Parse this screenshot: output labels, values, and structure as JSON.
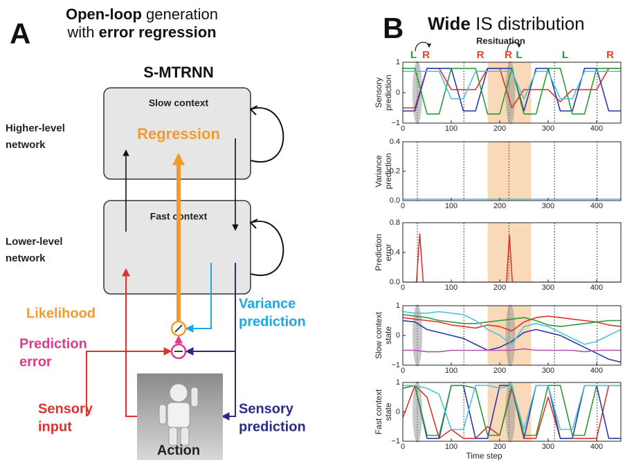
{
  "panel_a": {
    "letter": "A",
    "title": [
      [
        {
          "text": "Open-loop",
          "bold": true
        },
        {
          "text": " generation",
          "bold": false
        }
      ],
      [
        {
          "text": "with ",
          "bold": false
        },
        {
          "text": "error regression",
          "bold": true
        }
      ]
    ],
    "model": "S-MTRNN",
    "slow_box": {
      "title": "Slow context",
      "label": "Regression"
    },
    "fast_box": {
      "title": "Fast context"
    },
    "higher_level": [
      "Higher-level",
      "network"
    ],
    "lower_level": [
      "Lower-level",
      "network"
    ],
    "likelihood": "Likelihood",
    "prediction_error": [
      "Prediction",
      "error"
    ],
    "variance_prediction": [
      "Variance",
      "prediction"
    ],
    "sensory_input": [
      "Sensory",
      "input"
    ],
    "sensory_prediction": [
      "Sensory",
      "prediction"
    ],
    "action": "Action"
  },
  "panel_b": {
    "letter": "B",
    "title": [
      {
        "text": "Wide",
        "bold": true
      },
      {
        "text": " IS distribution",
        "bold": false
      }
    ],
    "annotation": "Resituation",
    "top_labels": [
      {
        "text": "L",
        "x": 22,
        "color": "#1f9a3a"
      },
      {
        "text": "R",
        "x": 48,
        "color": "#e0402a"
      },
      {
        "text": "R",
        "x": 160,
        "color": "#e0402a"
      },
      {
        "text": "R",
        "x": 218,
        "color": "#e0402a"
      },
      {
        "text": "L",
        "x": 240,
        "color": "#1f9a3a"
      },
      {
        "text": "L",
        "x": 335,
        "color": "#1f9a3a"
      },
      {
        "text": "R",
        "x": 428,
        "color": "#e0402a"
      }
    ],
    "events": [
      30,
      126,
      219,
      313,
      401
    ],
    "shade": [
      175,
      265
    ],
    "highlights": [
      30,
      222
    ]
  },
  "chart_data": [
    {
      "type": "line",
      "ylabel": [
        "Sensory",
        "prediction"
      ],
      "xlim": [
        0,
        450
      ],
      "xticks": [
        0,
        100,
        200,
        300,
        400
      ],
      "ylim": [
        -1,
        1
      ],
      "yticks": [
        {
          "value": -1,
          "label": "−1"
        },
        0,
        1
      ],
      "x": [
        0,
        25,
        50,
        75,
        100,
        125,
        150,
        175,
        200,
        225,
        250,
        275,
        300,
        325,
        350,
        375,
        400,
        425,
        450
      ],
      "series": [
        {
          "color": "#e0302a",
          "values": [
            -0.5,
            -0.5,
            0.8,
            0.8,
            0.1,
            0.1,
            0.1,
            0.8,
            0.8,
            -0.5,
            0.1,
            0.1,
            0.1,
            -0.3,
            0.1,
            0.1,
            0.1,
            0.8,
            0.8
          ]
        },
        {
          "color": "#2a3aa8",
          "values": [
            -0.6,
            -0.6,
            0.8,
            0.8,
            0.8,
            -0.6,
            -0.6,
            0.8,
            0.8,
            0.8,
            -0.6,
            0.8,
            0.8,
            -0.6,
            -0.6,
            0.8,
            0.8,
            -0.6,
            -0.6
          ]
        },
        {
          "color": "#2a9a3a",
          "values": [
            0.8,
            0.8,
            -0.7,
            -0.7,
            0.8,
            0.8,
            0.8,
            -0.7,
            -0.7,
            0.8,
            -0.7,
            -0.7,
            0.8,
            0.8,
            -0.7,
            -0.7,
            0.8,
            0.8,
            0.8
          ]
        },
        {
          "color": "#4fc3dc",
          "values": [
            0.7,
            0.7,
            0.7,
            0.7,
            -0.2,
            -0.2,
            0.7,
            0.7,
            0.7,
            0.7,
            -0.2,
            0.7,
            0.7,
            -0.2,
            -0.2,
            0.7,
            0.7,
            0.7,
            0.7
          ]
        }
      ]
    },
    {
      "type": "line",
      "ylabel": [
        "Variance",
        "prediction"
      ],
      "xlim": [
        0,
        450
      ],
      "xticks": [
        0,
        100,
        200,
        300,
        400
      ],
      "ylim": [
        0,
        0.4
      ],
      "yticks": [
        {
          "value": 0,
          "label": "0.0"
        },
        0.2,
        0.4
      ],
      "x": [
        0,
        450
      ],
      "series": [
        {
          "color": "#4fc3dc",
          "values": [
            0.01,
            0.01
          ]
        }
      ]
    },
    {
      "type": "line",
      "ylabel": [
        "Prediction",
        "error"
      ],
      "xlim": [
        0,
        450
      ],
      "xticks": [
        0,
        100,
        200,
        300,
        400
      ],
      "ylim": [
        0,
        0.8
      ],
      "yticks": [
        {
          "value": 0,
          "label": "0.0"
        },
        0.4,
        0.8
      ],
      "x": [
        0,
        28,
        35,
        42,
        214,
        220,
        226,
        450
      ],
      "series": [
        {
          "color": "#e0302a",
          "values": [
            0,
            0,
            0.65,
            0,
            0,
            0.63,
            0,
            0
          ]
        }
      ]
    },
    {
      "type": "line",
      "ylabel": [
        "Slow context",
        "state"
      ],
      "xlim": [
        0,
        450
      ],
      "xticks": [
        0,
        100,
        200,
        300,
        400
      ],
      "ylim": [
        -1,
        1
      ],
      "yticks": [
        {
          "value": -1,
          "label": "−1"
        },
        0,
        1
      ],
      "x": [
        0,
        25,
        50,
        75,
        100,
        125,
        150,
        175,
        200,
        225,
        250,
        275,
        300,
        325,
        350,
        375,
        400,
        425,
        450
      ],
      "series": [
        {
          "color": "#e0302a",
          "values": [
            0.6,
            0.55,
            0.5,
            0.45,
            0.35,
            0.3,
            0.25,
            0.35,
            0.3,
            0.15,
            0.45,
            0.6,
            0.65,
            0.6,
            0.55,
            0.5,
            0.45,
            0.35,
            0.3
          ]
        },
        {
          "color": "#2a9a3a",
          "values": [
            0.7,
            0.65,
            0.6,
            0.5,
            0.45,
            0.4,
            0.4,
            0.45,
            0.5,
            0.55,
            0.6,
            0.5,
            0.35,
            0.3,
            0.35,
            0.4,
            0.45,
            0.5,
            0.5
          ]
        },
        {
          "color": "#2a3aa8",
          "values": [
            0.5,
            0.45,
            0.2,
            0.1,
            0,
            -0.1,
            -0.3,
            -0.5,
            -0.4,
            -0.2,
            0.1,
            0.2,
            0.1,
            0,
            -0.2,
            -0.4,
            -0.6,
            -0.8,
            -0.9
          ]
        },
        {
          "color": "#4fc3dc",
          "values": [
            0.8,
            0.75,
            0.75,
            0.8,
            0.75,
            0.7,
            0.5,
            0.2,
            0,
            -0.3,
            0.3,
            0.4,
            0.3,
            0.1,
            -0.1,
            -0.3,
            -0.2,
            0,
            0.2
          ]
        },
        {
          "color": "#b050b0",
          "values": [
            -0.5,
            -0.5,
            -0.55,
            -0.55,
            -0.5,
            -0.5,
            -0.5,
            -0.5,
            -0.5,
            -0.5,
            -0.45,
            -0.5,
            -0.5,
            -0.5,
            -0.5,
            -0.55,
            -0.5,
            -0.5,
            -0.5
          ]
        }
      ]
    },
    {
      "type": "line",
      "ylabel": [
        "Fast context",
        "state"
      ],
      "xlim": [
        0,
        450
      ],
      "xticks": [
        0,
        100,
        200,
        300,
        400
      ],
      "ylim": [
        -1,
        1
      ],
      "yticks": [
        {
          "value": -1,
          "label": "−1"
        },
        0,
        1
      ],
      "xlabel": "Time step",
      "x": [
        0,
        25,
        50,
        75,
        100,
        125,
        150,
        175,
        200,
        225,
        250,
        275,
        300,
        325,
        350,
        375,
        400,
        425,
        450
      ],
      "series": [
        {
          "color": "#e0302a",
          "values": [
            -0.2,
            0.9,
            0.5,
            -0.9,
            -0.6,
            -0.9,
            -0.9,
            -0.5,
            -0.8,
            0.8,
            -0.9,
            -0.9,
            0.5,
            -0.9,
            -0.9,
            -0.9,
            -0.9,
            0.9,
            0.9
          ]
        },
        {
          "color": "#2a3aa8",
          "values": [
            0.9,
            0.9,
            -0.9,
            -0.9,
            0.9,
            0.9,
            -0.9,
            -0.9,
            0.9,
            0.9,
            -0.9,
            0.9,
            0.9,
            -0.9,
            -0.9,
            0.9,
            0.9,
            -0.9,
            -0.9
          ]
        },
        {
          "color": "#2a9a3a",
          "values": [
            0.8,
            0.9,
            -0.8,
            -0.8,
            0.9,
            0.9,
            0.8,
            -0.8,
            -0.8,
            0.9,
            -0.8,
            -0.8,
            0.9,
            0.9,
            -0.8,
            -0.8,
            0.9,
            0.9,
            0.9
          ]
        },
        {
          "color": "#4fc3dc",
          "values": [
            0.9,
            0.9,
            0.8,
            0.6,
            -0.6,
            -0.6,
            0.9,
            0.9,
            0.8,
            0.9,
            -0.6,
            0.9,
            0.9,
            -0.6,
            -0.6,
            0.9,
            0.9,
            0.9,
            0.9
          ]
        }
      ]
    }
  ]
}
